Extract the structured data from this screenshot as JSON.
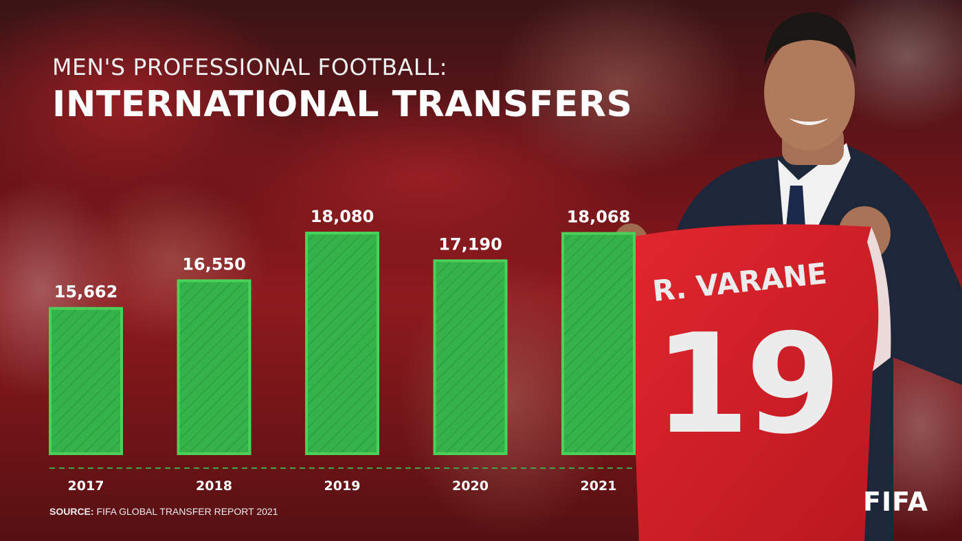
{
  "header": {
    "subtitle": "MEN'S PROFESSIONAL FOOTBALL:",
    "title": "INTERNATIONAL TRANSFERS"
  },
  "chart_data": {
    "type": "bar",
    "categories": [
      "2017",
      "2018",
      "2019",
      "2020",
      "2021"
    ],
    "values": [
      15662,
      16550,
      18080,
      17190,
      18068
    ],
    "value_labels": [
      "15,662",
      "16,550",
      "18,080",
      "17,190",
      "18,068"
    ],
    "title": "INTERNATIONAL TRANSFERS",
    "xlabel": "",
    "ylabel": "",
    "grid": false,
    "legend": "none",
    "bar_color": "#36b24a",
    "bar_edge_color": "#4cd05a"
  },
  "jersey": {
    "name": "R. VARANE",
    "number": "19"
  },
  "source": {
    "label": "SOURCE:",
    "text": " FIFA GLOBAL TRANSFER REPORT 2021"
  },
  "logo": {
    "text": "FIFA"
  },
  "colors": {
    "background": "#5a0c10",
    "jersey": "#d8242c",
    "suit": "#1e2639"
  }
}
